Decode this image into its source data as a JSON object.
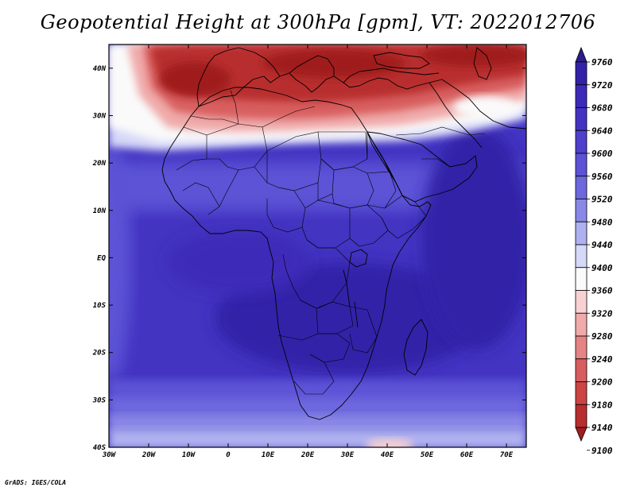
{
  "title": "Geopotential Height at 300hPa [gpm], VT: 2022012706",
  "credit": "GrADS: IGES/COLA",
  "map": {
    "lon_range": [
      -30,
      75
    ],
    "lat_range": [
      -40,
      45
    ],
    "lon_ticks": [
      {
        "value": -30,
        "label": "30W"
      },
      {
        "value": -20,
        "label": "20W"
      },
      {
        "value": -10,
        "label": "10W"
      },
      {
        "value": 0,
        "label": "0"
      },
      {
        "value": 10,
        "label": "10E"
      },
      {
        "value": 20,
        "label": "20E"
      },
      {
        "value": 30,
        "label": "30E"
      },
      {
        "value": 40,
        "label": "40E"
      },
      {
        "value": 50,
        "label": "50E"
      },
      {
        "value": 60,
        "label": "60E"
      },
      {
        "value": 70,
        "label": "70E"
      }
    ],
    "lat_ticks": [
      {
        "value": 40,
        "label": "40N"
      },
      {
        "value": 30,
        "label": "30N"
      },
      {
        "value": 20,
        "label": "20N"
      },
      {
        "value": 10,
        "label": "10N"
      },
      {
        "value": 0,
        "label": "EQ"
      },
      {
        "value": -10,
        "label": "10S"
      },
      {
        "value": -20,
        "label": "20S"
      },
      {
        "value": -30,
        "label": "30S"
      },
      {
        "value": -40,
        "label": "40S"
      }
    ]
  },
  "colorbar": {
    "levels": [
      "9760",
      "9720",
      "9680",
      "9640",
      "9600",
      "9560",
      "9520",
      "9480",
      "9440",
      "9400",
      "9360",
      "9320",
      "9280",
      "9240",
      "9200",
      "9180",
      "9140",
      "9100"
    ],
    "colors": [
      "#2b1c8c",
      "#3322a8",
      "#3c2ab8",
      "#4433c2",
      "#4e40cc",
      "#5c52d6",
      "#6e68de",
      "#8a88e6",
      "#aeb0f0",
      "#d6d8f8",
      "#fafafa",
      "#f8d2d2",
      "#f0aaaa",
      "#e48484",
      "#d85e5e",
      "#cc4444",
      "#b82e2e",
      "#a01e1e"
    ]
  }
}
